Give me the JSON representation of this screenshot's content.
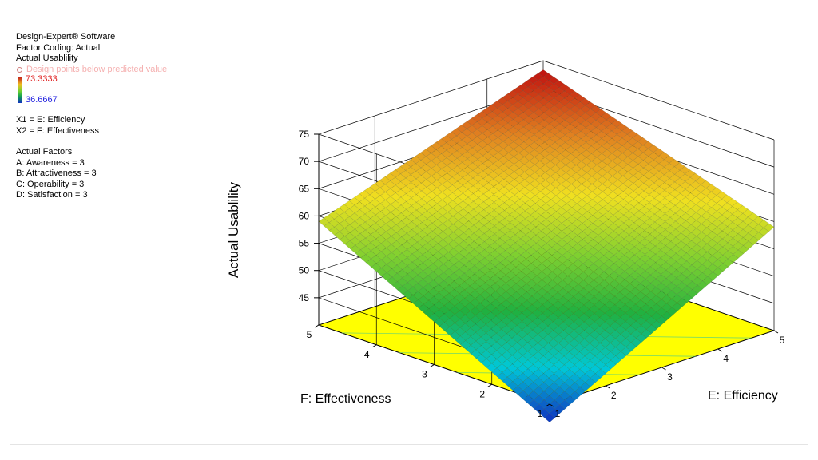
{
  "legend": {
    "software": "Design-Expert® Software",
    "coding": "Factor Coding: Actual",
    "response": "Actual Usablility",
    "points_note": "Design points below predicted value",
    "high": "73.3333",
    "low": "36.6667",
    "x1": "X1 = E: Efficiency",
    "x2": "X2 = F: Effectiveness",
    "actual_title": "Actual Factors",
    "factors": [
      "A: Awareness = 3",
      "B: Attractiveness = 3",
      "C: Operability = 3",
      "D: Satisfaction = 3"
    ]
  },
  "chart_data": {
    "type": "surface",
    "title": "",
    "zlabel": "Actual Usablility",
    "xlabel": "E: Efficiency",
    "ylabel": "F: Effectiveness",
    "xlim": [
      1,
      5
    ],
    "ylim": [
      1,
      5
    ],
    "zlim": [
      40,
      75
    ],
    "z_ticks": [
      45,
      50,
      55,
      60,
      65,
      70,
      75
    ],
    "x_ticks": [
      1,
      2,
      3,
      4,
      5
    ],
    "y_ticks": [
      1,
      2,
      3,
      4,
      5
    ],
    "surface_corners": {
      "e1_f1": 36.67,
      "e5_f1": 59.0,
      "e1_f5": 59.0,
      "e5_f5": 73.33
    },
    "contour_floor_color": "#ffff00",
    "colorscale": [
      "#1030c0",
      "#00c8d8",
      "#20b040",
      "#80d030",
      "#f0e020",
      "#e08020",
      "#c01010"
    ]
  }
}
